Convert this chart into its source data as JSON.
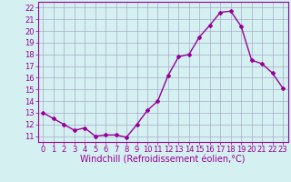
{
  "x": [
    0,
    1,
    2,
    3,
    4,
    5,
    6,
    7,
    8,
    9,
    10,
    11,
    12,
    13,
    14,
    15,
    16,
    17,
    18,
    19,
    20,
    21,
    22,
    23
  ],
  "y": [
    13.0,
    12.5,
    12.0,
    11.5,
    11.7,
    11.0,
    11.1,
    11.1,
    10.9,
    12.0,
    13.2,
    14.0,
    16.2,
    17.8,
    18.0,
    19.5,
    20.5,
    21.6,
    21.7,
    20.4,
    17.5,
    17.2,
    16.4,
    15.1
  ],
  "color": "#990099",
  "bg_color": "#d4f0f0",
  "grid_color": "#aaaacc",
  "xlabel": "Windchill (Refroidissement éolien,°C)",
  "ylim": [
    10.5,
    22.5
  ],
  "xlim": [
    -0.5,
    23.5
  ],
  "yticks": [
    11,
    12,
    13,
    14,
    15,
    16,
    17,
    18,
    19,
    20,
    21,
    22
  ],
  "xticks": [
    0,
    1,
    2,
    3,
    4,
    5,
    6,
    7,
    8,
    9,
    10,
    11,
    12,
    13,
    14,
    15,
    16,
    17,
    18,
    19,
    20,
    21,
    22,
    23
  ],
  "marker": "D",
  "marker_size": 2,
  "line_width": 1.0,
  "xlabel_fontsize": 7,
  "tick_fontsize": 6
}
